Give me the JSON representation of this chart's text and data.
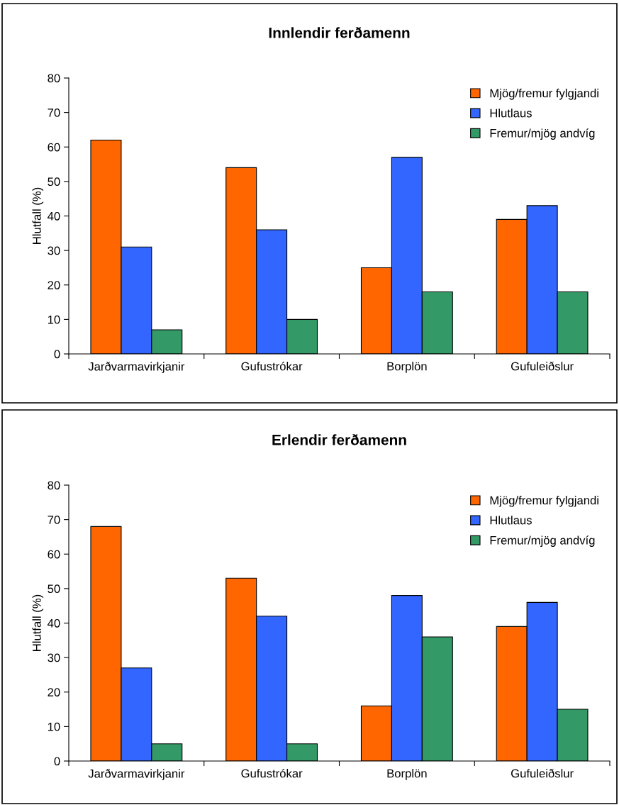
{
  "chart_data": [
    {
      "type": "bar",
      "title": "Innlendir ferðamenn",
      "ylabel": "Hlutfall (%)",
      "categories": [
        "Jarðvarmavirkjanir",
        "Gufustrókar",
        "Borplön",
        "Gufuleiðslur"
      ],
      "ylim": [
        0,
        80
      ],
      "yticks": [
        0,
        10,
        20,
        30,
        40,
        50,
        60,
        70,
        80
      ],
      "grid": false,
      "legend": "top right",
      "series": [
        {
          "name": "Mjög/fremur fylgjandi",
          "color": "#ff6600",
          "values": [
            62,
            54,
            25,
            39
          ]
        },
        {
          "name": "Hlutlaus",
          "color": "#3366ff",
          "values": [
            31,
            36,
            57,
            43
          ]
        },
        {
          "name": "Fremur/mjög andvíg",
          "color": "#339966",
          "values": [
            7,
            10,
            18,
            18
          ]
        }
      ]
    },
    {
      "type": "bar",
      "title": "Erlendir ferðamenn",
      "ylabel": "Hlutfall (%)",
      "categories": [
        "Jarðvarmavirkjanir",
        "Gufustrókar",
        "Borplön",
        "Gufuleiðslur"
      ],
      "ylim": [
        0,
        80
      ],
      "yticks": [
        0,
        10,
        20,
        30,
        40,
        50,
        60,
        70,
        80
      ],
      "grid": false,
      "legend": "top right",
      "series": [
        {
          "name": "Mjög/fremur fylgjandi",
          "color": "#ff6600",
          "values": [
            68,
            53,
            16,
            39
          ]
        },
        {
          "name": "Hlutlaus",
          "color": "#3366ff",
          "values": [
            27,
            42,
            48,
            46
          ]
        },
        {
          "name": "Fremur/mjög andvíg",
          "color": "#339966",
          "values": [
            5,
            5,
            36,
            15
          ]
        }
      ]
    }
  ]
}
